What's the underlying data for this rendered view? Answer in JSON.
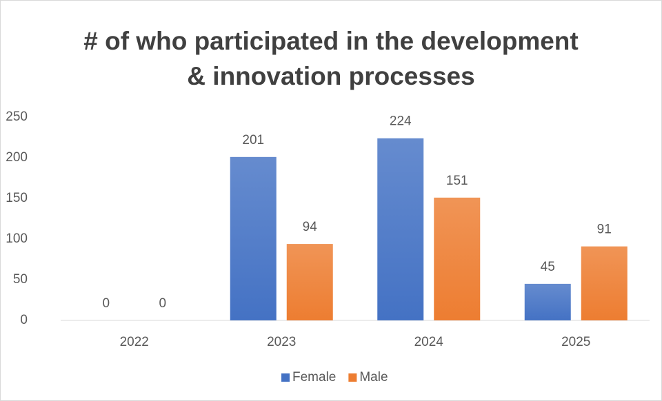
{
  "chart_data": {
    "type": "bar",
    "title": [
      "# of who participated in the development",
      "& innovation processes"
    ],
    "categories": [
      "2022",
      "2023",
      "2024",
      "2025"
    ],
    "series": [
      {
        "name": "Female",
        "color": "#4472c4",
        "values": [
          0,
          201,
          224,
          45
        ]
      },
      {
        "name": "Male",
        "color": "#ed7d31",
        "values": [
          0,
          94,
          151,
          91
        ]
      }
    ],
    "ylim": [
      0,
      250
    ],
    "yticks": [
      0,
      50,
      100,
      150,
      200,
      250
    ],
    "grid": false,
    "legend": "bottom"
  }
}
